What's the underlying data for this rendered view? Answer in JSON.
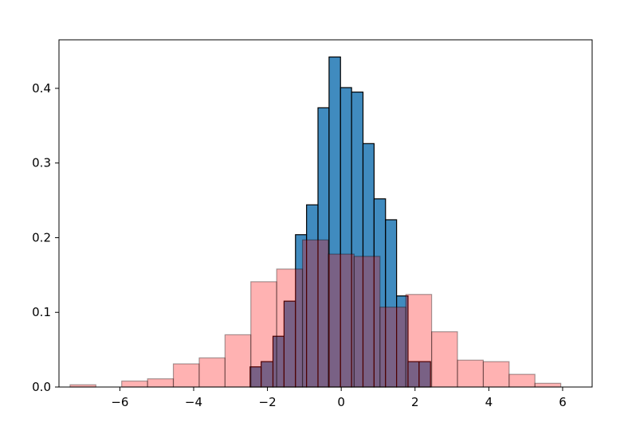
{
  "chart_data": {
    "type": "bar",
    "title": "",
    "xlabel": "",
    "ylabel": "",
    "xlim": [
      -7.65,
      6.8
    ],
    "ylim": [
      0,
      0.465
    ],
    "grid": false,
    "legend": "none",
    "x_ticks": [
      {
        "value": -6,
        "label": "−6"
      },
      {
        "value": -4,
        "label": "−4"
      },
      {
        "value": -2,
        "label": "−2"
      },
      {
        "value": 0,
        "label": "0"
      },
      {
        "value": 2,
        "label": "2"
      },
      {
        "value": 4,
        "label": "4"
      },
      {
        "value": 6,
        "label": "6"
      }
    ],
    "y_ticks": [
      {
        "value": 0.0,
        "label": "0.0"
      },
      {
        "value": 0.1,
        "label": "0.1"
      },
      {
        "value": 0.2,
        "label": "0.2"
      },
      {
        "value": 0.3,
        "label": "0.3"
      },
      {
        "value": 0.4,
        "label": "0.4"
      }
    ],
    "series": [
      {
        "kind": "histogram",
        "color": "#1f77b4",
        "alpha": 0.85,
        "edgecolor": "#000000",
        "bin_edges": [
          -2.47,
          -2.17,
          -1.85,
          -1.55,
          -1.24,
          -0.94,
          -0.63,
          -0.33,
          -0.02,
          0.28,
          0.59,
          0.89,
          1.2,
          1.5,
          1.81,
          2.11,
          2.42
        ],
        "values": [
          0.027,
          0.034,
          0.068,
          0.115,
          0.204,
          0.244,
          0.374,
          0.442,
          0.401,
          0.395,
          0.326,
          0.252,
          0.224,
          0.122,
          0.034,
          0.034
        ]
      },
      {
        "kind": "histogram",
        "color": "#ff0000",
        "alpha": 0.3,
        "edgecolor": "#000000",
        "bin_edges": [
          -7.35,
          -6.65,
          -5.95,
          -5.25,
          -4.55,
          -3.85,
          -3.15,
          -2.45,
          -1.75,
          -1.05,
          -0.35,
          0.35,
          1.05,
          1.75,
          2.45,
          3.15,
          3.85,
          4.55,
          5.25,
          5.95
        ],
        "values": [
          0.003,
          0.0,
          0.008,
          0.011,
          0.031,
          0.039,
          0.07,
          0.141,
          0.158,
          0.197,
          0.178,
          0.175,
          0.107,
          0.124,
          0.074,
          0.036,
          0.034,
          0.017,
          0.005
        ]
      }
    ]
  }
}
